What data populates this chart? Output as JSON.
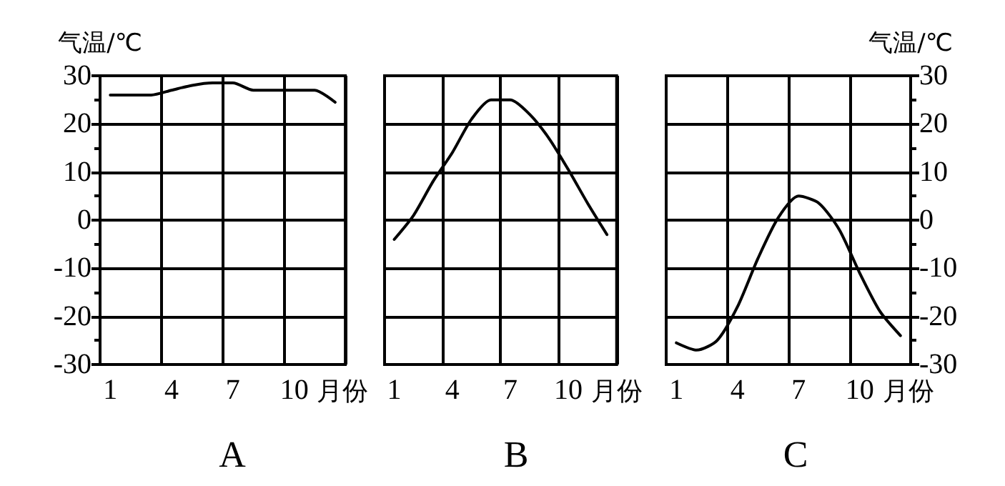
{
  "chart_data": [
    {
      "type": "line",
      "title": "A",
      "xlabel": "月份",
      "ylabel": "气温/℃",
      "categories": [
        "1",
        null,
        null,
        "4",
        null,
        null,
        "7",
        null,
        null,
        "10",
        null,
        null
      ],
      "series": [
        {
          "color": "#000000",
          "values": [
            26,
            26,
            26,
            27,
            28,
            28.5,
            28.5,
            27,
            27,
            27,
            27,
            24.5
          ]
        }
      ],
      "ylim": [
        -30,
        30
      ],
      "yticks": [
        -30,
        -20,
        -10,
        0,
        10,
        20,
        30
      ],
      "grid": true,
      "marker": "none",
      "line_style": "solid"
    },
    {
      "type": "line",
      "title": "B",
      "xlabel": "月份",
      "categories": [
        "1",
        null,
        null,
        "4",
        null,
        null,
        "7",
        null,
        null,
        "10",
        null,
        null
      ],
      "series": [
        {
          "color": "#000000",
          "values": [
            -4,
            1,
            8,
            14,
            21,
            25,
            25,
            22,
            17,
            10.5,
            3.5,
            -3
          ]
        }
      ],
      "ylim": [
        -30,
        30
      ],
      "yticks": [
        -30,
        -20,
        -10,
        0,
        10,
        20,
        30
      ],
      "tick_labels": "x",
      "grid": true,
      "marker": "none",
      "line_style": "solid"
    },
    {
      "type": "line",
      "title": "C",
      "xlabel": "月份",
      "y2label": "气温/℃",
      "categories": [
        "1",
        null,
        null,
        "4",
        null,
        null,
        "7",
        null,
        null,
        "10",
        null,
        null
      ],
      "series": [
        {
          "color": "#000000",
          "axis": "y2",
          "values": [
            -25.5,
            -27,
            -25,
            -18,
            -8,
            0.5,
            5,
            3.5,
            -2,
            -11,
            -19,
            -24
          ]
        }
      ],
      "y2lim": [
        -30,
        30
      ],
      "y2ticks": [
        -30,
        -20,
        -10,
        0,
        10,
        20,
        30
      ],
      "grid": true,
      "marker": "none",
      "line_style": "solid"
    }
  ]
}
